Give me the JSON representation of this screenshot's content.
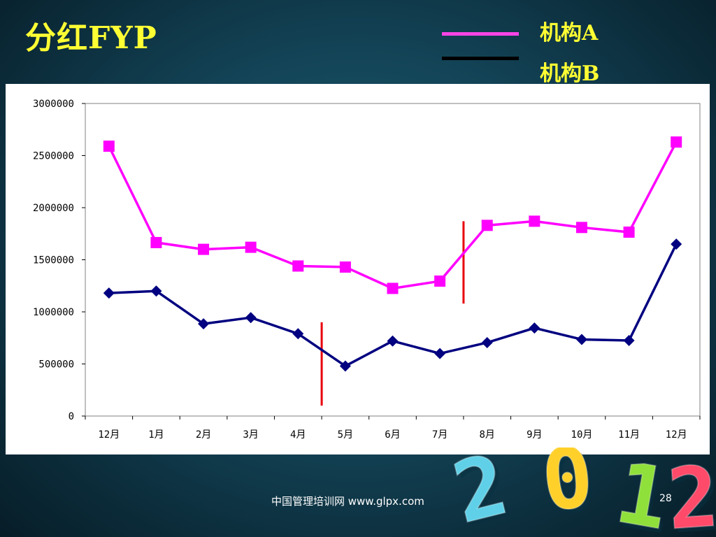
{
  "slide": {
    "title": "分红FYP",
    "footer": "中国管理培训网  www.glpx.com",
    "page_number": "28"
  },
  "legend": [
    {
      "label": "机构A",
      "color": "#ff44e6"
    },
    {
      "label": "机构B",
      "color": "#000000"
    }
  ],
  "decoration": {
    "year_digits": [
      "2",
      "0",
      "1",
      "2"
    ],
    "colors": [
      "#5fd0e8",
      "#ffd02a",
      "#8fe03a",
      "#ff4a6a"
    ]
  },
  "chart_data": {
    "type": "line",
    "categories": [
      "12月",
      "1月",
      "2月",
      "3月",
      "4月",
      "5月",
      "6月",
      "7月",
      "8月",
      "9月",
      "10月",
      "11月",
      "12月"
    ],
    "series": [
      {
        "name": "机构A",
        "color": "#ff00ff",
        "line_color": "#ff00ff",
        "marker": "square",
        "values": [
          2590000,
          1665000,
          1600000,
          1620000,
          1440000,
          1430000,
          1225000,
          1295000,
          1830000,
          1870000,
          1810000,
          1765000,
          2630000
        ]
      },
      {
        "name": "机构B",
        "color": "#000080",
        "line_color": "#000080",
        "marker": "diamond",
        "values": [
          1180000,
          1200000,
          885000,
          945000,
          790000,
          480000,
          720000,
          600000,
          705000,
          845000,
          735000,
          725000,
          1650000
        ]
      }
    ],
    "ylim": [
      0,
      3000000
    ],
    "yticks": [
      0,
      500000,
      1000000,
      1500000,
      2000000,
      2500000,
      3000000
    ],
    "ytick_labels": [
      "0",
      "500000",
      "1000000",
      "1500000",
      "2000000",
      "2500000",
      "3000000"
    ],
    "markers": [
      {
        "between": [
          "4月",
          "5月"
        ],
        "from": 100000,
        "to": 900000,
        "color": "#e8000b"
      },
      {
        "between": [
          "7月",
          "8月"
        ],
        "from": 1080000,
        "to": 1870000,
        "color": "#e8000b"
      }
    ],
    "grid": false,
    "legend_position": "top-right",
    "title": "",
    "xlabel": "",
    "ylabel": ""
  }
}
